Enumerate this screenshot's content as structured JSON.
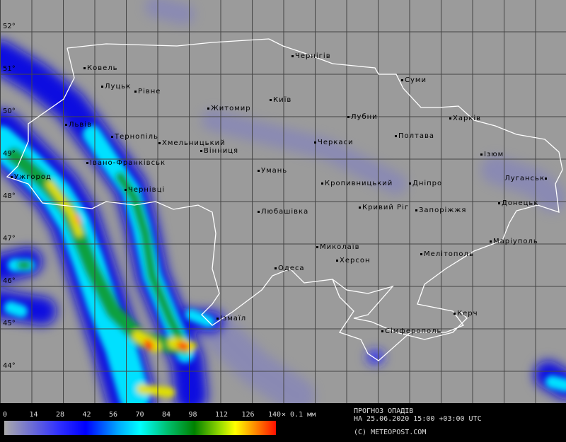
{
  "map": {
    "latitude_labels": [
      "52°",
      "51°",
      "50°",
      "49°",
      "48°",
      "47°",
      "46°",
      "45°",
      "44°"
    ],
    "cities": [
      "Ковель",
      "Луцьк",
      "Рівне",
      "Житомир",
      "Київ",
      "Чернігів",
      "Суми",
      "Лубни",
      "Харків",
      "Полтава",
      "Черкаси",
      "Ізюм",
      "Луганськ",
      "Кропивницький",
      "Дніпро",
      "Кривий Ріг",
      "Запоріжжя",
      "Донецьк",
      "Львів",
      "Тернопіль",
      "Хмельницький",
      "Вінниця",
      "Івано-Франківськ",
      "Ужгород",
      "Чернівці",
      "Умань",
      "Любашівка",
      "Миколаїв",
      "Херсон",
      "Одеса",
      "Мелітополь",
      "Маріуполь",
      "Ізмаїл",
      "Керч",
      "Сімферополь"
    ]
  },
  "legend": {
    "ticks": [
      "0",
      "14",
      "28",
      "42",
      "56",
      "70",
      "84",
      "98",
      "112",
      "126",
      "140"
    ],
    "unit": "× 0.1 мм",
    "range": [
      0,
      140
    ],
    "colors": [
      "#aaaaaa",
      "#0000ff",
      "#00ffff",
      "#008000",
      "#ffff00",
      "#ff1000"
    ],
    "title_line1": "ПРОГНОЗ ОПАДІВ",
    "title_line2": "НА 25.06.2020 15:00 +03:00 UTC",
    "copyright": "(C) METEOPOST.COM"
  }
}
